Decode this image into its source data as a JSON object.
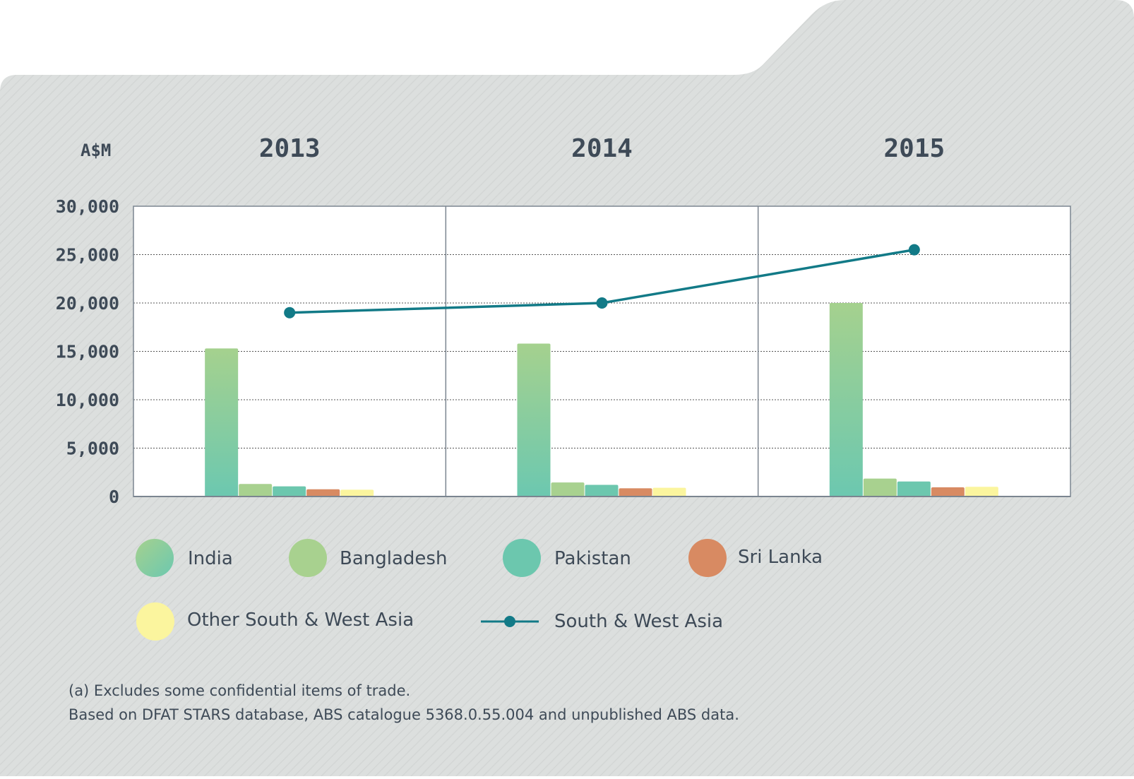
{
  "chart_data": {
    "type": "bar",
    "unit_label": "A$M",
    "categories": [
      "2013",
      "2014",
      "2015"
    ],
    "ylim": [
      0,
      30000
    ],
    "yticks": [
      "0",
      "5,000",
      "10,000",
      "15,000",
      "20,000",
      "25,000",
      "30,000"
    ],
    "grid": true,
    "series": [
      {
        "name": "India",
        "values": [
          15300,
          15800,
          20000
        ],
        "color": "#8fcc98"
      },
      {
        "name": "Bangladesh",
        "values": [
          1300,
          1450,
          1850
        ],
        "color": "#a8d18f"
      },
      {
        "name": "Pakistan",
        "values": [
          1050,
          1200,
          1550
        ],
        "color": "#6cc7ae"
      },
      {
        "name": "Sri Lanka",
        "values": [
          750,
          850,
          950
        ],
        "color": "#d88a62"
      },
      {
        "name": "Other South & West Asia",
        "values": [
          700,
          900,
          1000
        ],
        "color": "#fbf59e"
      }
    ],
    "line_series": {
      "name": "South & West Asia",
      "values": [
        19000,
        20000,
        25500
      ],
      "color": "#127a87"
    },
    "legend_placement": "bottom"
  },
  "footnotes": [
    "(a) Excludes some confidential items of trade.",
    "Based on DFAT STARS database, ABS catalogue 5368.0.55.004 and unpublished ABS data."
  ],
  "colors": {
    "panel": "#dcdfde",
    "plot_bg": "#ffffff",
    "text": "#3e4a57"
  }
}
